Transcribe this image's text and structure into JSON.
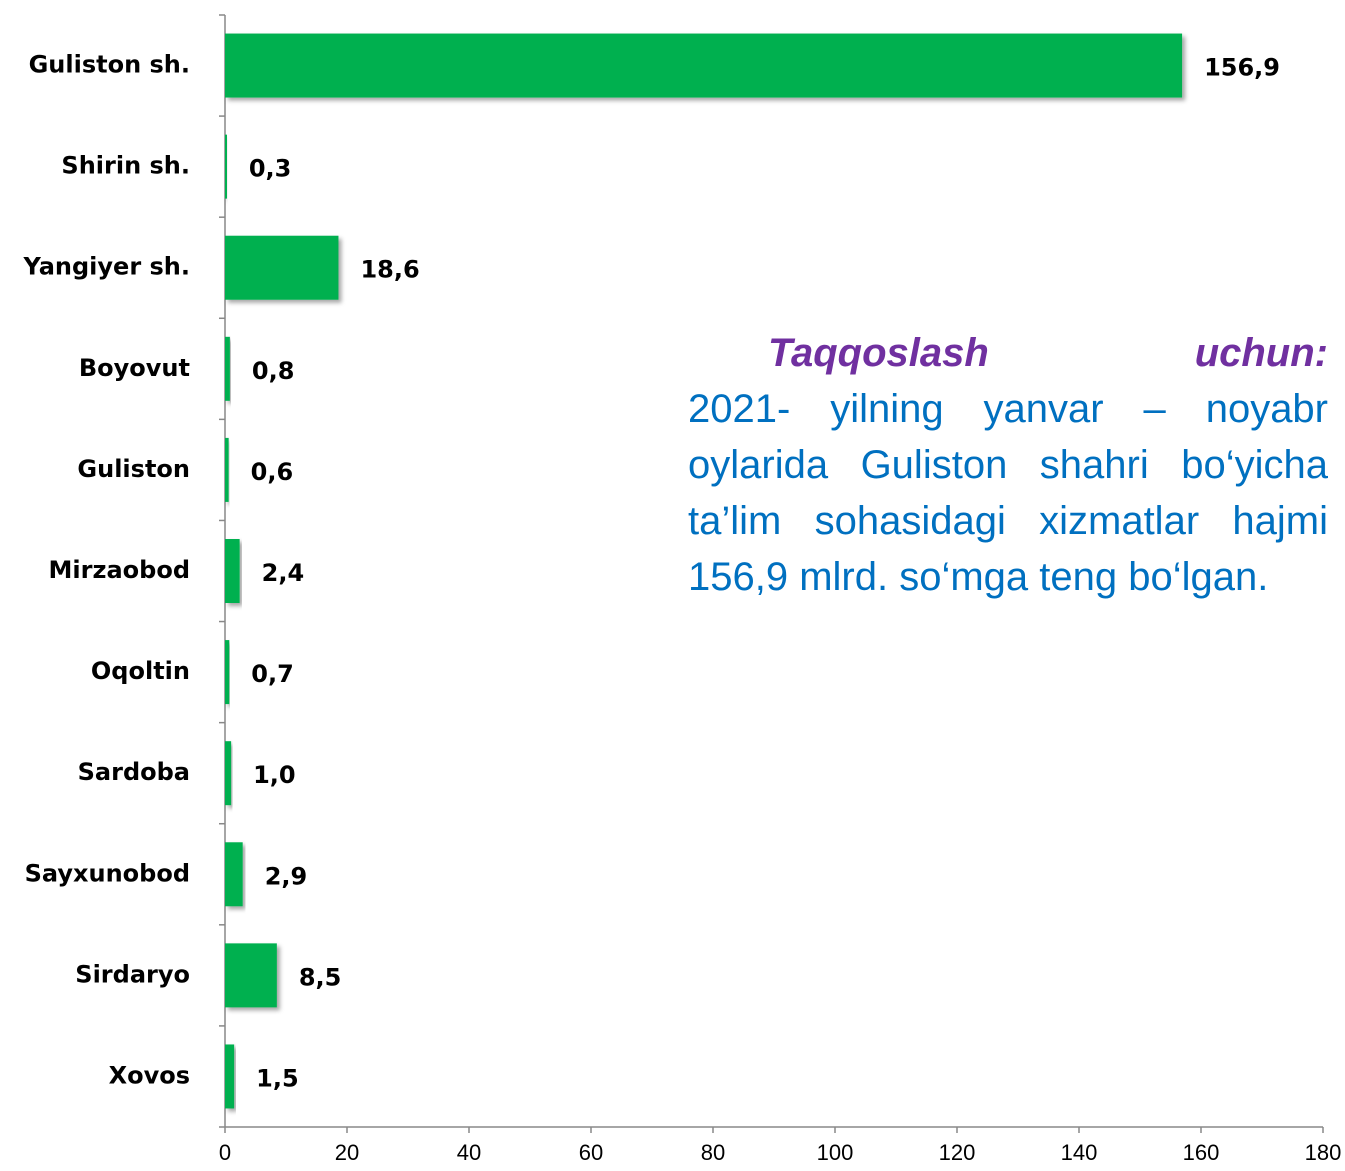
{
  "chart_data": {
    "type": "bar",
    "orientation": "horizontal",
    "categories": [
      "Guliston sh.",
      "Shirin sh.",
      "Yangiyer sh.",
      "Boyovut",
      "Guliston",
      "Mirzaobod",
      "Oqoltin",
      "Sardoba",
      "Sayxunobod",
      "Sirdaryo",
      "Xovos"
    ],
    "values": [
      156.9,
      0.3,
      18.6,
      0.8,
      0.6,
      2.4,
      0.7,
      1.0,
      2.9,
      8.5,
      1.5
    ],
    "value_labels": [
      "156,9",
      "0,3",
      "18,6",
      "0,8",
      "0,6",
      "2,4",
      "0,7",
      "1,0",
      "2,9",
      "8,5",
      "1,5"
    ],
    "color": "#00b050",
    "xlim": [
      0,
      180
    ],
    "xticks": [
      0,
      20,
      40,
      60,
      80,
      100,
      120,
      140,
      160,
      180
    ],
    "annotation": {
      "title": "Taqqoslash uchun:",
      "text": "2021- yilning yanvar – noyabr oylarida Guliston shahri bo‘yicha ta’lim sohasidagi xizmatlar hajmi 156,9 mlrd. so‘mga teng bo‘lgan."
    }
  }
}
